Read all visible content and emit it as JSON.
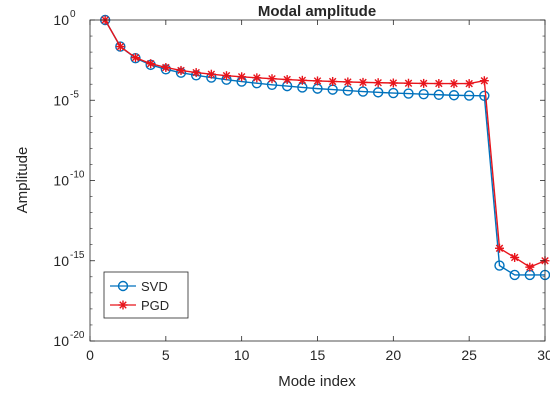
{
  "chart_data": {
    "type": "line",
    "title": "Modal amplitude",
    "xlabel": "Mode index",
    "ylabel": "Amplitude",
    "yscale": "log",
    "xlim": [
      0,
      30
    ],
    "ylim": [
      1e-20,
      1
    ],
    "xticks": [
      0,
      5,
      10,
      15,
      20,
      25,
      30
    ],
    "yticks": [
      {
        "mantissa": "10",
        "exponent": "0",
        "value": 1
      },
      {
        "mantissa": "10",
        "exponent": "-5",
        "value": 1e-05
      },
      {
        "mantissa": "10",
        "exponent": "-10",
        "value": 1e-10
      },
      {
        "mantissa": "10",
        "exponent": "-15",
        "value": 1e-15
      },
      {
        "mantissa": "10",
        "exponent": "-20",
        "value": 1e-20
      }
    ],
    "legend_position": "bottom-left",
    "x": [
      1,
      2,
      3,
      4,
      5,
      6,
      7,
      8,
      9,
      10,
      11,
      12,
      13,
      14,
      15,
      16,
      17,
      18,
      19,
      20,
      21,
      22,
      23,
      24,
      25,
      26,
      27,
      28,
      29,
      30
    ],
    "series": [
      {
        "name": "SVD",
        "color": "#0072BD",
        "marker": "circle",
        "values": [
          1,
          0.022,
          0.0042,
          0.0016,
          0.00085,
          0.00052,
          0.00036,
          0.00026,
          0.00019,
          0.000145,
          0.000115,
          9.2e-05,
          7.6e-05,
          6.3e-05,
          5.3e-05,
          4.6e-05,
          4e-05,
          3.5e-05,
          3.1e-05,
          2.8e-05,
          2.6e-05,
          2.4e-05,
          2.2e-05,
          2.05e-05,
          1.95e-05,
          1.9e-05,
          5e-16,
          1.3e-16,
          1.3e-16,
          1.3e-16
        ]
      },
      {
        "name": "PGD",
        "color": "#E8141B",
        "marker": "star",
        "values": [
          1,
          0.022,
          0.0045,
          0.0019,
          0.0011,
          0.00072,
          0.00053,
          0.00042,
          0.00034,
          0.00029,
          0.00025,
          0.00022,
          0.000195,
          0.000175,
          0.00016,
          0.000148,
          0.000138,
          0.00013,
          0.000124,
          0.000119,
          0.000115,
          0.000112,
          0.00011,
          0.000109,
          0.000109,
          0.000165,
          6e-15,
          1.6e-15,
          4e-16,
          1e-15
        ]
      }
    ]
  }
}
